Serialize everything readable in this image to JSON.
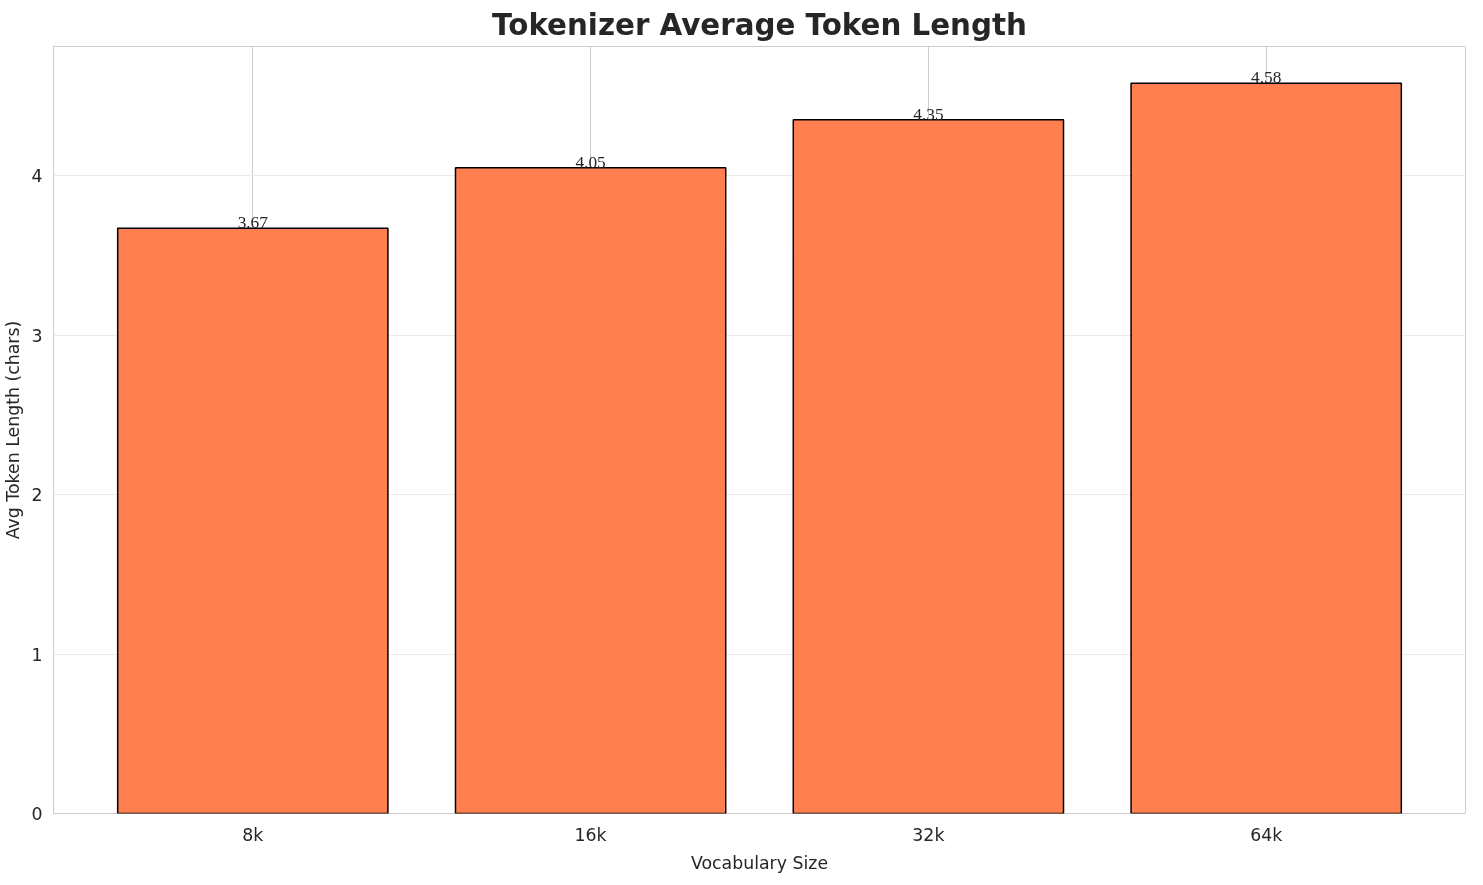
{
  "chart_data": {
    "type": "bar",
    "title": "Tokenizer Average Token Length",
    "xlabel": "Vocabulary Size",
    "ylabel": "Avg Token Length (chars)",
    "categories": [
      "8k",
      "16k",
      "32k",
      "64k"
    ],
    "values": [
      3.67,
      4.05,
      4.35,
      4.58
    ],
    "color": "#ff7f50",
    "ylim": [
      0,
      4.81
    ],
    "yticks": [
      0,
      1,
      2,
      3,
      4
    ],
    "grid": true,
    "data_labels": true
  }
}
